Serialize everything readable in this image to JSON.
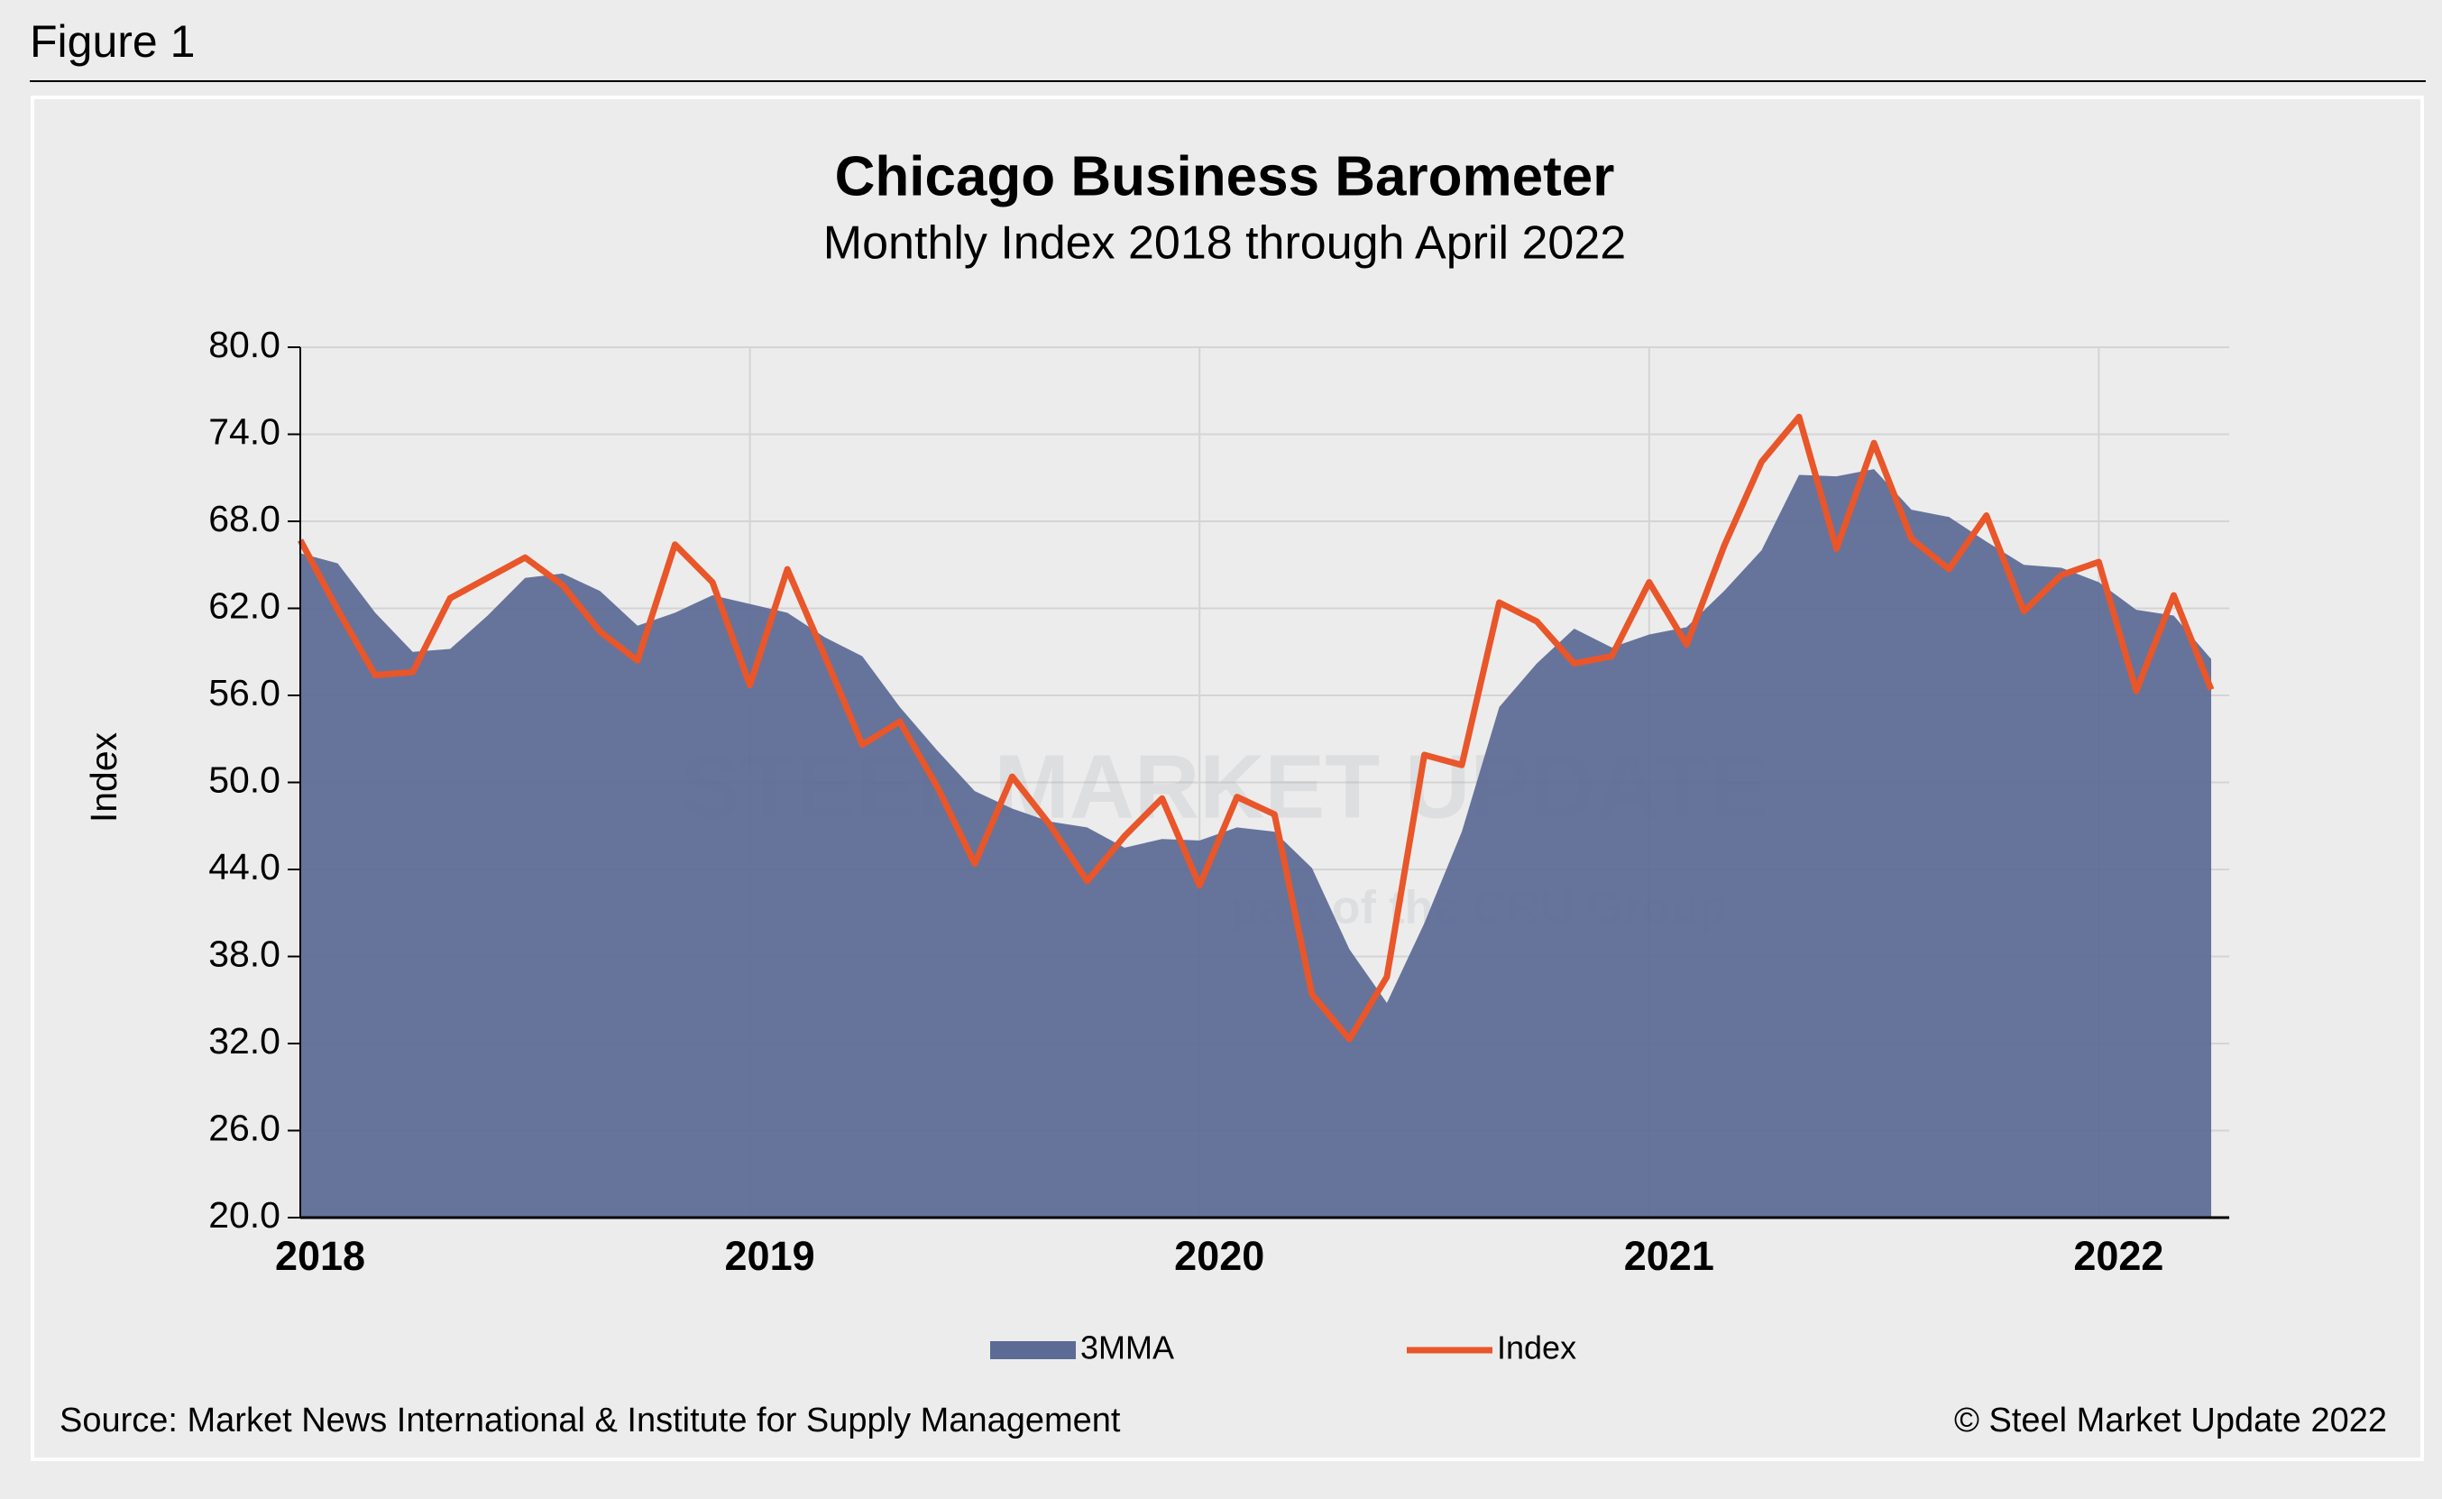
{
  "figure_label": "Figure 1",
  "chart_data": {
    "type": "area-line",
    "title": "Chicago Business Barometer",
    "subtitle": "Monthly Index 2018 through April 2022",
    "y_label": "Index",
    "source": "Source: Market News International & Institute for Supply Management",
    "copyright": "© Steel Market Update 2022",
    "watermark": "STEEL MARKET UPDATE",
    "watermark_sub": "part of the CRU Group",
    "categories": [
      "2018",
      null,
      null,
      null,
      null,
      null,
      null,
      null,
      null,
      null,
      null,
      null,
      "2019",
      null,
      null,
      null,
      null,
      null,
      null,
      null,
      null,
      null,
      null,
      null,
      "2020",
      null,
      null,
      null,
      null,
      null,
      null,
      null,
      null,
      null,
      null,
      null,
      "2021",
      null,
      null,
      null,
      null,
      null,
      null,
      null,
      null,
      null,
      null,
      null,
      "2022",
      null,
      null,
      null
    ],
    "series": [
      {
        "name": "3MMA",
        "color": "#5b6b95",
        "kind": "area",
        "values": [
          65.8,
          65.1,
          61.7,
          59.0,
          59.2,
          61.5,
          64.1,
          64.4,
          63.2,
          60.8,
          61.7,
          62.9,
          62.3,
          61.7,
          60.0,
          58.7,
          55.2,
          52.2,
          49.4,
          48.2,
          47.3,
          46.9,
          45.5,
          46.1,
          46.0,
          46.9,
          46.6,
          44.1,
          38.5,
          34.8,
          40.3,
          46.6,
          55.2,
          58.2,
          60.6,
          59.3,
          60.2,
          60.7,
          63.2,
          66.0,
          71.2,
          71.1,
          71.6,
          68.8,
          68.3,
          66.6,
          65.0,
          64.8,
          63.8,
          61.9,
          61.5,
          58.5
        ]
      },
      {
        "name": "Index",
        "color": "#e8562a",
        "kind": "line",
        "values": [
          66.7,
          61.9,
          57.4,
          57.6,
          62.7,
          64.1,
          65.5,
          63.6,
          60.4,
          58.4,
          66.4,
          63.8,
          56.7,
          64.7,
          58.7,
          52.6,
          54.2,
          49.7,
          44.4,
          50.4,
          47.1,
          43.2,
          46.3,
          48.9,
          42.9,
          49.0,
          47.8,
          35.4,
          32.3,
          36.6,
          51.9,
          51.2,
          62.4,
          61.1,
          58.2,
          58.7,
          63.8,
          59.5,
          66.3,
          72.1,
          75.2,
          66.1,
          73.4,
          66.8,
          64.7,
          68.4,
          61.8,
          64.3,
          65.2,
          56.3,
          62.9,
          56.4
        ]
      }
    ],
    "ylim": [
      20,
      80
    ],
    "yticks": [
      {
        "value": 20,
        "label": "20.0"
      },
      {
        "value": 26,
        "label": "26.0"
      },
      {
        "value": 32,
        "label": "32.0"
      },
      {
        "value": 38,
        "label": "38.0"
      },
      {
        "value": 44,
        "label": "44.0"
      },
      {
        "value": 50,
        "label": "50.0"
      },
      {
        "value": 56,
        "label": "56.0"
      },
      {
        "value": 62,
        "label": "62.0"
      },
      {
        "value": 68,
        "label": "68.0"
      },
      {
        "value": 74,
        "label": "74.0"
      },
      {
        "value": 80,
        "label": "80.0"
      }
    ],
    "grid": true,
    "legend": "bottom"
  }
}
